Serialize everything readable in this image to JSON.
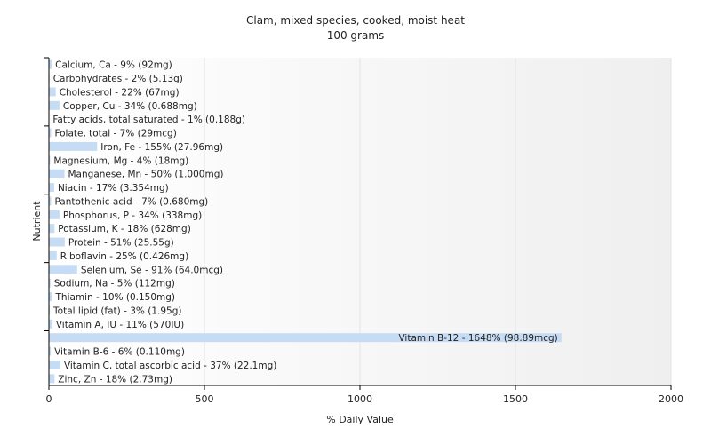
{
  "chart_data": {
    "type": "bar",
    "orientation": "horizontal",
    "title": "Clam, mixed species, cooked, moist heat",
    "subtitle": "100 grams",
    "xlabel": "% Daily Value",
    "ylabel": "Nutrient",
    "xlim": [
      0,
      2000
    ],
    "xticks": [
      "0",
      "500",
      "1000",
      "1500",
      "2000"
    ],
    "grid": true,
    "categories": [
      "Calcium, Ca - 9% (92mg)",
      "Carbohydrates - 2% (5.13g)",
      "Cholesterol - 22% (67mg)",
      "Copper, Cu - 34% (0.688mg)",
      "Fatty acids, total saturated - 1% (0.188g)",
      "Folate, total - 7% (29mcg)",
      "Iron, Fe - 155% (27.96mg)",
      "Magnesium, Mg - 4% (18mg)",
      "Manganese, Mn - 50% (1.000mg)",
      "Niacin - 17% (3.354mg)",
      "Pantothenic acid - 7% (0.680mg)",
      "Phosphorus, P - 34% (338mg)",
      "Potassium, K - 18% (628mg)",
      "Protein - 51% (25.55g)",
      "Riboflavin - 25% (0.426mg)",
      "Selenium, Se - 91% (64.0mcg)",
      "Sodium, Na - 5% (112mg)",
      "Thiamin - 10% (0.150mg)",
      "Total lipid (fat) - 3% (1.95g)",
      "Vitamin A, IU - 11% (570IU)",
      "Vitamin B-12 - 1648% (98.89mcg)",
      "Vitamin B-6 - 6% (0.110mg)",
      "Vitamin C, total ascorbic acid - 37% (22.1mg)",
      "Zinc, Zn - 18% (2.73mg)"
    ],
    "values": [
      9,
      2,
      22,
      34,
      1,
      7,
      155,
      4,
      50,
      17,
      7,
      34,
      18,
      51,
      25,
      91,
      5,
      10,
      3,
      11,
      1648,
      6,
      37,
      18
    ],
    "colors": {
      "bar": "#c6dcf5",
      "axis": "#000000",
      "grid": "#e3e3e3",
      "plot_bg_start": "#ffffff",
      "plot_bg_end": "#efefef",
      "text": "#222222"
    }
  }
}
